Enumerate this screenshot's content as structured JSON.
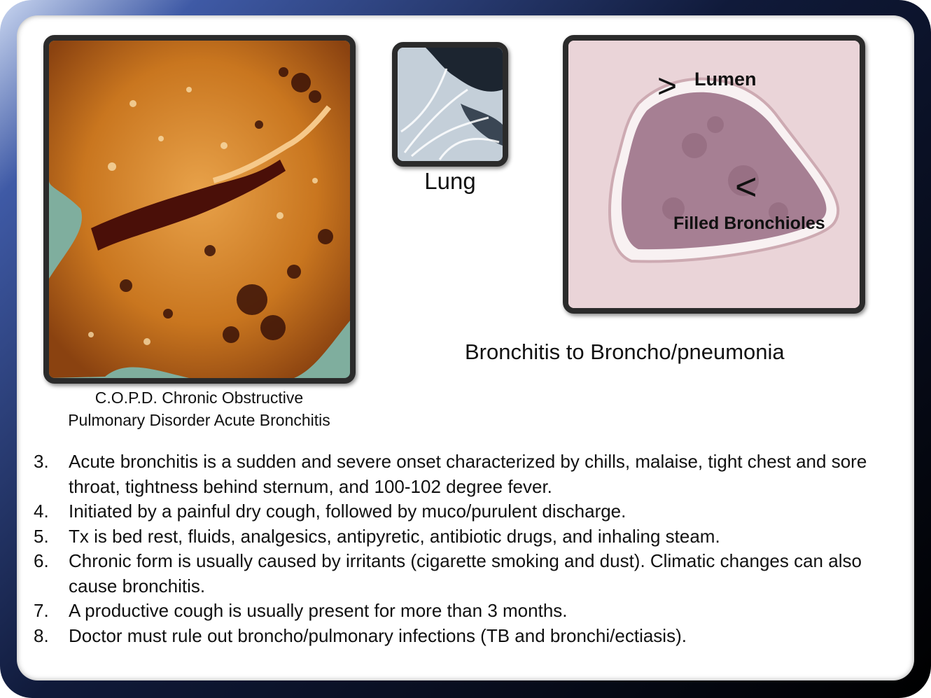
{
  "images": {
    "copd": {
      "caption_line1": "C.O.P.D. Chronic Obstructive",
      "caption_line2": "Pulmonary Disorder Acute Bronchitis"
    },
    "lung": {
      "caption": "Lung"
    },
    "histology": {
      "lumen_arrow": ">",
      "lumen_label": "Lumen",
      "filled_arrow": "<",
      "filled_label": "Filled Bronchioles"
    }
  },
  "section_title": "Bronchitis to Broncho/pneumonia",
  "bullets": [
    {
      "num": "3.",
      "text": "Acute bronchitis is a sudden and severe onset characterized by chills, malaise, tight chest and sore throat, tightness behind sternum, and 100-102 degree fever."
    },
    {
      "num": "4.",
      "text": "Initiated by a painful dry cough, followed by muco/purulent discharge."
    },
    {
      "num": "5.",
      "text": "Tx is bed rest, fluids, analgesics, antipyretic, antibiotic drugs, and inhaling steam."
    },
    {
      "num": "6.",
      "text": "Chronic form is usually caused by irritants (cigarette smoking and dust). Climatic changes can also cause bronchitis."
    },
    {
      "num": "7.",
      "text": "A productive cough is usually present for more than 3 months."
    },
    {
      "num": "8.",
      "text": "Doctor must rule out broncho/pulmonary infections (TB and bronchi/ectiasis)."
    }
  ]
}
